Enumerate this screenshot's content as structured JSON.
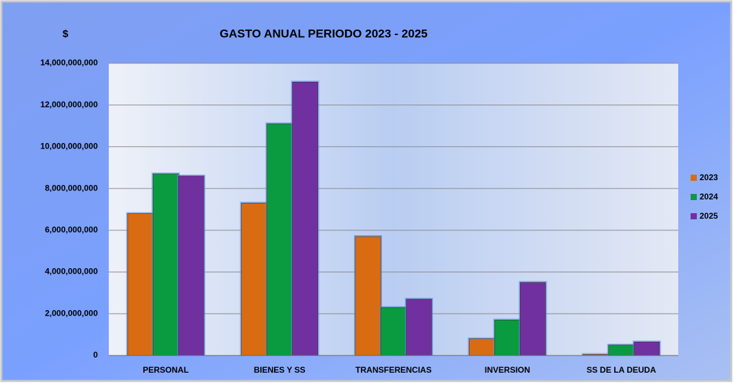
{
  "chart_data": {
    "type": "bar",
    "title": "GASTO ANUAL  PERIODO  2023 - 2025",
    "y_label": "$",
    "categories": [
      "PERSONAL",
      "BIENES Y SS",
      "TRANSFERENCIAS",
      "INVERSION",
      "SS DE LA DEUDA"
    ],
    "series": [
      {
        "name": "2023",
        "color": "#d96b12",
        "values": [
          6800000000,
          7300000000,
          5700000000,
          800000000,
          50000000
        ]
      },
      {
        "name": "2024",
        "color": "#0a9a40",
        "values": [
          8700000000,
          11100000000,
          2300000000,
          1700000000,
          500000000
        ]
      },
      {
        "name": "2025",
        "color": "#7030a0",
        "values": [
          8600000000,
          13100000000,
          2700000000,
          3500000000,
          650000000
        ]
      }
    ],
    "ylim": [
      0,
      14000000000
    ],
    "yticks": [
      0,
      {
        "value": 2000000000,
        "label": "2,000,000,000"
      },
      {
        "value": 4000000000,
        "label": "4,000,000,000"
      },
      {
        "value": 6000000000,
        "label": "6,000,000,000"
      },
      {
        "value": 8000000000,
        "label": "8,000,000,000"
      },
      {
        "value": 10000000000,
        "label": "10,000,000,000"
      },
      {
        "value": 12000000000,
        "label": "12,000,000,000"
      },
      {
        "value": 14000000000,
        "label": "14,000,000,000"
      }
    ],
    "grid": true,
    "legend": "right"
  }
}
